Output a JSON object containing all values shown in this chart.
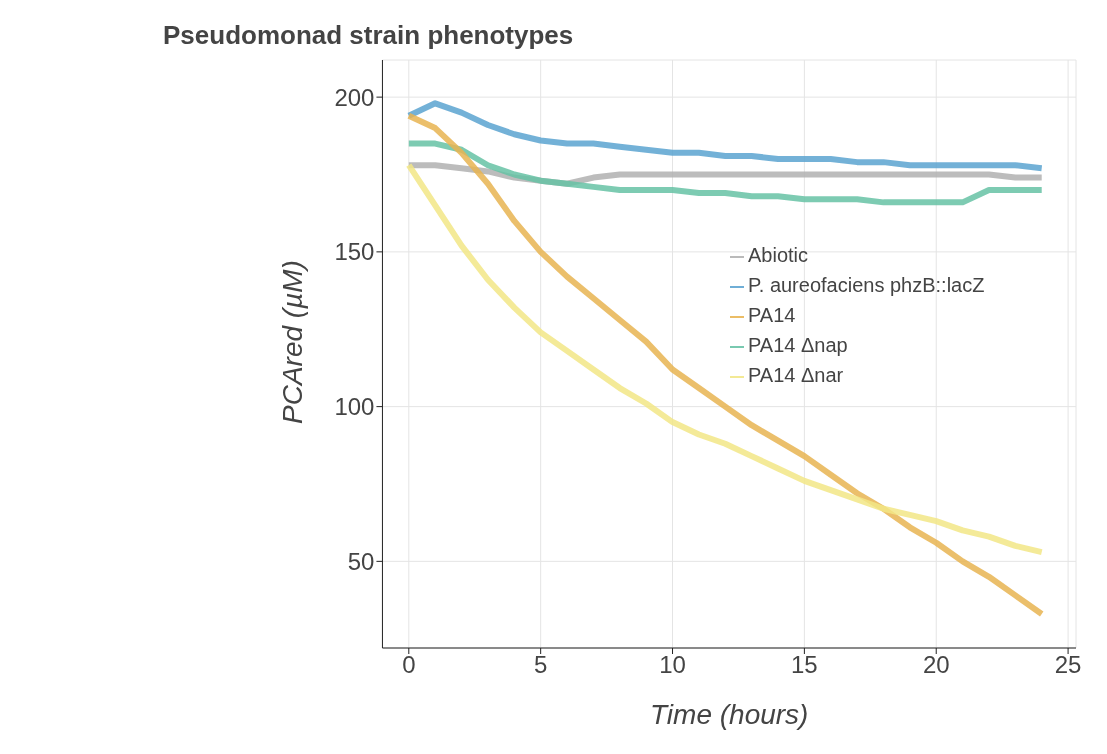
{
  "chart_data": {
    "type": "line",
    "title": "Pseudomonad strain phenotypes",
    "xlabel": "Time (hours)",
    "ylabel": "PCAred (µM)",
    "x": [
      0,
      1,
      2,
      3,
      4,
      5,
      6,
      7,
      8,
      9,
      10,
      11,
      12,
      13,
      14,
      15,
      16,
      17,
      18,
      19,
      20,
      21,
      22,
      23,
      24
    ],
    "series": [
      {
        "name": "Abiotic",
        "color": "#b0b0b0",
        "values": [
          178,
          178,
          177,
          176,
          174,
          173,
          172,
          174,
          175,
          175,
          175,
          175,
          175,
          175,
          175,
          175,
          175,
          175,
          175,
          175,
          175,
          175,
          175,
          174,
          174
        ]
      },
      {
        "name": "P. aureofaciens phzB::lacZ",
        "color": "#5ba3d0",
        "values": [
          194,
          198,
          195,
          191,
          188,
          186,
          185,
          185,
          184,
          183,
          182,
          182,
          181,
          181,
          180,
          180,
          180,
          179,
          179,
          178,
          178,
          178,
          178,
          178,
          177
        ]
      },
      {
        "name": "PA14 Δnap",
        "color": "#66c2a5",
        "values": [
          185,
          185,
          183,
          178,
          175,
          173,
          172,
          171,
          170,
          170,
          170,
          169,
          169,
          168,
          168,
          167,
          167,
          167,
          166,
          166,
          166,
          166,
          170,
          170,
          170
        ]
      },
      {
        "name": "PA14",
        "color": "#e8b451",
        "values": [
          194,
          190,
          182,
          172,
          160,
          150,
          142,
          135,
          128,
          121,
          112,
          106,
          100,
          94,
          89,
          84,
          78,
          72,
          67,
          61,
          56,
          50,
          45,
          39,
          33
        ]
      },
      {
        "name": "PA14 Δnar",
        "color": "#f2e686",
        "values": [
          178,
          165,
          152,
          141,
          132,
          124,
          118,
          112,
          106,
          101,
          95,
          91,
          88,
          84,
          80,
          76,
          73,
          70,
          67,
          65,
          63,
          60,
          58,
          55,
          53
        ]
      }
    ],
    "xlim": [
      -1,
      25.3
    ],
    "xticks": [
      0,
      5,
      10,
      15,
      20,
      25
    ],
    "ylim": [
      22,
      212
    ],
    "yticks": [
      50,
      100,
      150,
      200
    ],
    "grid": true,
    "legend": "right",
    "marker": "none",
    "line_style": "solid"
  }
}
